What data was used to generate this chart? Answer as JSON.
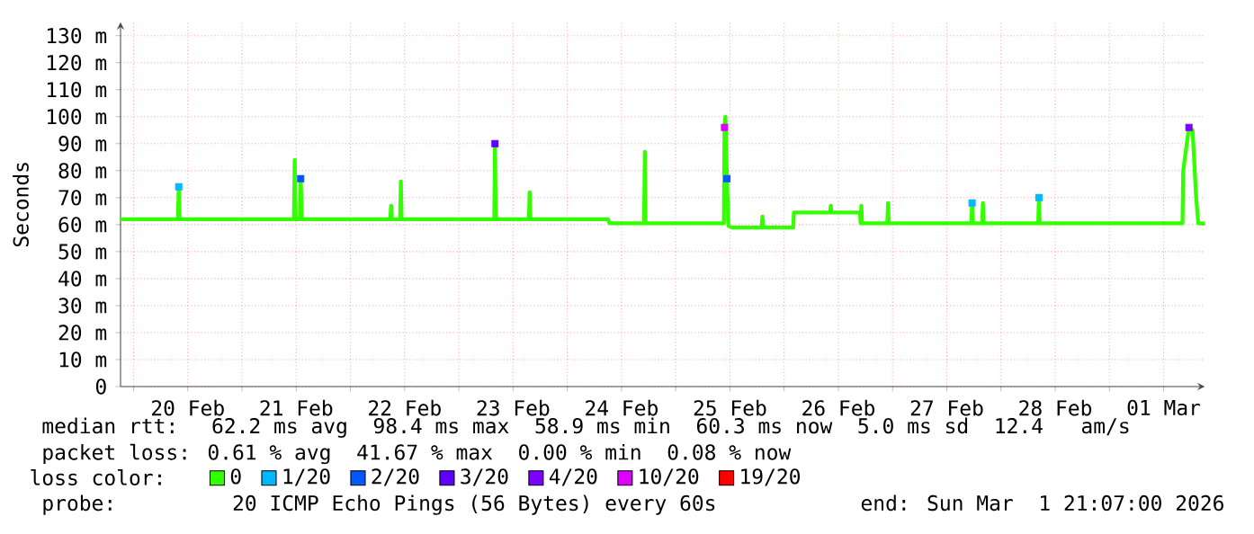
{
  "chart_data": {
    "type": "line",
    "ylabel": "Seconds",
    "legend_title": "loss color:",
    "legend": "bottom",
    "grid": true,
    "xlim": [
      "2026-02-19T21:07",
      "2026-03-01T21:07"
    ],
    "ylim": [
      0,
      135
    ],
    "xticks": [
      {
        "value": "2026-02-20T00:00",
        "label": null
      },
      {
        "value": "2026-02-20T12:00",
        "label": "20 Feb"
      },
      {
        "value": "2026-02-21T00:00",
        "label": null
      },
      {
        "value": "2026-02-21T12:00",
        "label": "21 Feb"
      },
      {
        "value": "2026-02-22T00:00",
        "label": null
      },
      {
        "value": "2026-02-22T12:00",
        "label": "22 Feb"
      },
      {
        "value": "2026-02-23T00:00",
        "label": null
      },
      {
        "value": "2026-02-23T12:00",
        "label": "23 Feb"
      },
      {
        "value": "2026-02-24T00:00",
        "label": null
      },
      {
        "value": "2026-02-24T12:00",
        "label": "24 Feb"
      },
      {
        "value": "2026-02-25T00:00",
        "label": null
      },
      {
        "value": "2026-02-25T12:00",
        "label": "25 Feb"
      },
      {
        "value": "2026-02-26T00:00",
        "label": null
      },
      {
        "value": "2026-02-26T12:00",
        "label": "26 Feb"
      },
      {
        "value": "2026-02-27T00:00",
        "label": null
      },
      {
        "value": "2026-02-27T12:00",
        "label": "27 Feb"
      },
      {
        "value": "2026-02-28T00:00",
        "label": null
      },
      {
        "value": "2026-02-28T12:00",
        "label": "28 Feb"
      },
      {
        "value": "2026-03-01T00:00",
        "label": null
      },
      {
        "value": "2026-03-01T12:00",
        "label": "01 Mar"
      }
    ],
    "yticks": [
      0,
      {
        "value": 10,
        "label": "10 m"
      },
      {
        "value": 20,
        "label": "20 m"
      },
      {
        "value": 30,
        "label": "30 m"
      },
      {
        "value": 40,
        "label": "40 m"
      },
      {
        "value": 50,
        "label": "50 m"
      },
      {
        "value": 60,
        "label": "60 m"
      },
      {
        "value": 70,
        "label": "70 m"
      },
      {
        "value": 80,
        "label": "80 m"
      },
      {
        "value": 90,
        "label": "90 m"
      },
      {
        "value": 100,
        "label": "100 m"
      },
      {
        "value": 110,
        "label": "110 m"
      },
      {
        "value": 120,
        "label": "120 m"
      },
      {
        "value": 130,
        "label": "130 m"
      }
    ],
    "series": [
      {
        "name": "0",
        "color": "#33ff00",
        "marker": "none",
        "x": [
          "2026-02-19T21:07",
          "2026-02-20T09:50",
          "2026-02-20T10:00",
          "2026-02-20T10:10",
          "2026-02-21T11:30",
          "2026-02-21T11:40",
          "2026-02-21T11:55",
          "2026-02-21T12:50",
          "2026-02-21T13:00",
          "2026-02-21T13:15",
          "2026-02-22T08:50",
          "2026-02-22T09:00",
          "2026-02-22T09:10",
          "2026-02-22T11:00",
          "2026-02-22T11:10",
          "2026-02-22T11:20",
          "2026-02-23T07:50",
          "2026-02-23T08:00",
          "2026-02-23T08:10",
          "2026-02-23T15:30",
          "2026-02-23T15:40",
          "2026-02-23T15:50",
          "2026-02-24T09:00",
          "2026-02-24T09:20",
          "2026-02-24T17:00",
          "2026-02-24T17:10",
          "2026-02-24T17:20",
          "2026-02-25T10:40",
          "2026-02-25T10:48",
          "2026-02-25T11:00",
          "2026-02-25T11:20",
          "2026-02-25T11:40",
          "2026-02-25T12:30",
          "2026-02-25T19:00",
          "2026-02-25T19:12",
          "2026-02-25T19:25",
          "2026-02-26T02:00",
          "2026-02-26T02:10",
          "2026-02-26T10:10",
          "2026-02-26T10:20",
          "2026-02-26T10:30",
          "2026-02-26T16:48",
          "2026-02-26T16:55",
          "2026-02-26T17:05",
          "2026-02-26T17:15",
          "2026-02-26T22:50",
          "2026-02-26T23:00",
          "2026-02-26T23:10",
          "2026-02-27T17:26",
          "2026-02-27T17:36",
          "2026-02-27T17:46",
          "2026-02-27T19:50",
          "2026-02-27T20:00",
          "2026-02-27T20:10",
          "2026-02-28T08:14",
          "2026-02-28T08:24",
          "2026-02-28T08:34",
          "2026-03-01T16:10",
          "2026-03-01T16:20",
          "2026-03-01T17:36",
          "2026-03-01T18:24",
          "2026-03-01T19:12",
          "2026-03-01T19:40",
          "2026-03-01T21:07"
        ],
        "values": [
          62,
          62,
          74,
          62,
          62,
          84,
          62,
          62,
          77,
          62,
          62,
          67,
          62,
          62,
          76,
          62,
          62,
          90,
          62,
          62,
          72,
          62,
          62,
          60.5,
          60.5,
          87,
          60.5,
          60.5,
          96,
          100,
          77,
          59.5,
          58.9,
          58.9,
          63,
          58.9,
          58.9,
          64.5,
          64.5,
          67,
          64.5,
          64.5,
          60.5,
          67,
          60.5,
          60.5,
          68,
          60.5,
          60.5,
          68,
          60.5,
          60.5,
          68,
          60.5,
          60.5,
          70,
          60.5,
          60.5,
          80,
          96,
          95,
          70,
          60.5,
          60.3
        ]
      },
      {
        "name": "1/20",
        "type": "scatter",
        "color": "#00b8ff",
        "marker": "square",
        "x": [
          "2026-02-20T10:00",
          "2026-02-27T17:36",
          "2026-02-28T08:24"
        ],
        "values": [
          74,
          68,
          70
        ]
      },
      {
        "name": "2/20",
        "type": "scatter",
        "color": "#0059ff",
        "marker": "square",
        "x": [
          "2026-02-21T13:00",
          "2026-02-25T11:20"
        ],
        "values": [
          77,
          77
        ]
      },
      {
        "name": "3/20",
        "type": "scatter",
        "color": "#5e00ff",
        "marker": "square",
        "x": [
          "2026-02-23T08:00"
        ],
        "values": [
          90
        ]
      },
      {
        "name": "4/20",
        "type": "scatter",
        "color": "#7e00ff",
        "marker": "square",
        "x": [
          "2026-03-01T17:36"
        ],
        "values": [
          96
        ]
      },
      {
        "name": "10/20",
        "type": "scatter",
        "color": "#dd00ff",
        "marker": "square",
        "x": [
          "2026-02-25T10:48"
        ],
        "values": [
          96
        ]
      },
      {
        "name": "19/20",
        "type": "scatter",
        "color": "#ff0000",
        "marker": "square"
      }
    ],
    "annotations": [
      "median rtt:  62.2 ms avg  98.4 ms max  58.9 ms min  60.3 ms now  5.0 ms sd  12.4   am/s",
      "packet loss: 0.61 % avg  41.67 % max  0.00 % min  0.08 % now",
      "probe:       20 ICMP Echo Pings (56 Bytes) every 60s",
      "end: Sun Mar  1 21:07:00 2026"
    ]
  }
}
